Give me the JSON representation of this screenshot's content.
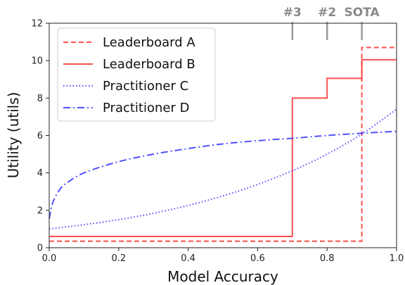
{
  "chart_data": {
    "type": "line",
    "title": "",
    "xlabel": "Model Accuracy",
    "ylabel": "Utility (utils)",
    "xlim": [
      0.0,
      1.0
    ],
    "ylim": [
      0,
      12
    ],
    "x_ticks": [
      "0.0",
      "0.2",
      "0.4",
      "0.6",
      "0.8",
      "1.0"
    ],
    "y_ticks": [
      "0",
      "2",
      "4",
      "6",
      "8",
      "10",
      "12"
    ],
    "grid": false,
    "legend_position": "top-left",
    "rank_markers": [
      {
        "label": "#3",
        "x": 0.7
      },
      {
        "label": "#2",
        "x": 0.8
      },
      {
        "label": "SOTA",
        "x": 0.9
      }
    ],
    "series": [
      {
        "name": "Leaderboard A",
        "style": "dashed",
        "color": "#ff3333",
        "points": [
          [
            0.0,
            0.35
          ],
          [
            0.9,
            0.35
          ],
          [
            0.9,
            10.7
          ],
          [
            1.0,
            10.7
          ]
        ]
      },
      {
        "name": "Leaderboard B",
        "style": "solid",
        "color": "#ff3333",
        "points": [
          [
            0.0,
            0.6
          ],
          [
            0.7,
            0.6
          ],
          [
            0.7,
            8.0
          ],
          [
            0.8,
            8.0
          ],
          [
            0.8,
            9.05
          ],
          [
            0.9,
            9.05
          ],
          [
            0.9,
            10.05
          ],
          [
            1.0,
            10.05
          ]
        ]
      },
      {
        "name": "Practitioner C",
        "style": "dotted",
        "color": "#3333ff",
        "points": [
          [
            0.0,
            1.0
          ],
          [
            0.1,
            1.23
          ],
          [
            0.2,
            1.5
          ],
          [
            0.3,
            1.84
          ],
          [
            0.4,
            2.26
          ],
          [
            0.5,
            2.77
          ],
          [
            0.6,
            3.38
          ],
          [
            0.7,
            4.12
          ],
          [
            0.8,
            5.0
          ],
          [
            0.9,
            6.08
          ],
          [
            1.0,
            7.4
          ]
        ]
      },
      {
        "name": "Practitioner D",
        "style": "dashdot",
        "color": "#3333ff",
        "points": [
          [
            0.0,
            1.55
          ],
          [
            0.01,
            2.4
          ],
          [
            0.03,
            3.1
          ],
          [
            0.05,
            3.45
          ],
          [
            0.1,
            4.0
          ],
          [
            0.2,
            4.6
          ],
          [
            0.3,
            5.0
          ],
          [
            0.4,
            5.3
          ],
          [
            0.5,
            5.55
          ],
          [
            0.6,
            5.72
          ],
          [
            0.7,
            5.85
          ],
          [
            0.8,
            6.0
          ],
          [
            0.9,
            6.12
          ],
          [
            1.0,
            6.22
          ]
        ]
      }
    ]
  }
}
